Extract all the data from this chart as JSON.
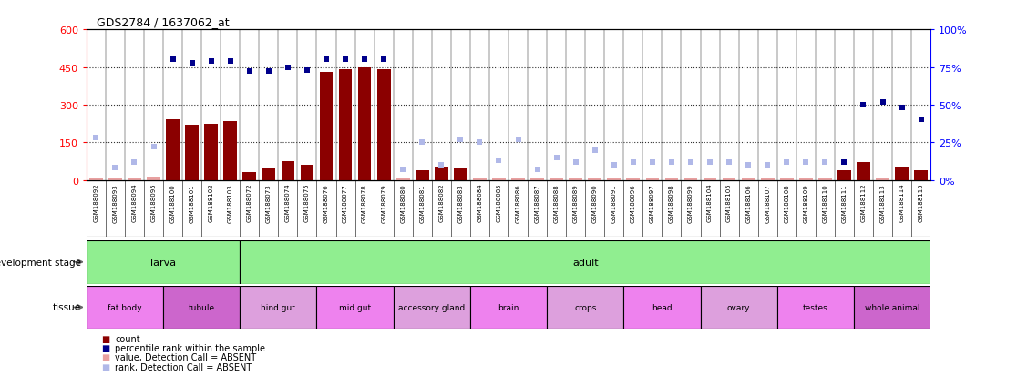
{
  "title": "GDS2784 / 1637062_at",
  "samples": [
    "GSM188092",
    "GSM188093",
    "GSM188094",
    "GSM188095",
    "GSM188100",
    "GSM188101",
    "GSM188102",
    "GSM188103",
    "GSM188072",
    "GSM188073",
    "GSM188074",
    "GSM188075",
    "GSM188076",
    "GSM188077",
    "GSM188078",
    "GSM188079",
    "GSM188080",
    "GSM188081",
    "GSM188082",
    "GSM188083",
    "GSM188084",
    "GSM188085",
    "GSM188086",
    "GSM188087",
    "GSM188088",
    "GSM188089",
    "GSM188090",
    "GSM188091",
    "GSM188096",
    "GSM188097",
    "GSM188098",
    "GSM188099",
    "GSM188104",
    "GSM188105",
    "GSM188106",
    "GSM188107",
    "GSM188108",
    "GSM188109",
    "GSM188110",
    "GSM188111",
    "GSM188112",
    "GSM188113",
    "GSM188114",
    "GSM188115"
  ],
  "count_values": [
    5,
    5,
    5,
    15,
    240,
    220,
    225,
    235,
    30,
    50,
    75,
    60,
    430,
    440,
    450,
    440,
    5,
    40,
    55,
    45,
    5,
    5,
    5,
    5,
    5,
    5,
    5,
    5,
    5,
    5,
    5,
    5,
    5,
    5,
    5,
    5,
    5,
    5,
    5,
    40,
    70,
    5,
    55,
    40
  ],
  "count_absent": [
    true,
    true,
    true,
    true,
    false,
    false,
    false,
    false,
    false,
    false,
    false,
    false,
    false,
    false,
    false,
    false,
    true,
    false,
    false,
    false,
    true,
    true,
    true,
    true,
    true,
    true,
    true,
    true,
    true,
    true,
    true,
    true,
    true,
    true,
    true,
    true,
    true,
    true,
    true,
    false,
    false,
    true,
    false,
    false
  ],
  "rank_values": [
    28,
    8,
    12,
    22,
    80,
    78,
    79,
    79,
    72,
    72,
    75,
    73,
    80,
    80,
    80,
    80,
    7,
    25,
    10,
    27,
    25,
    13,
    27,
    7,
    15,
    12,
    20,
    10,
    12,
    12,
    12,
    12,
    12,
    12,
    10,
    10,
    12,
    12,
    12,
    12,
    50,
    52,
    48,
    40
  ],
  "rank_absent": [
    true,
    true,
    true,
    true,
    false,
    false,
    false,
    false,
    false,
    false,
    false,
    false,
    false,
    false,
    false,
    false,
    true,
    true,
    true,
    true,
    true,
    true,
    true,
    true,
    true,
    true,
    true,
    true,
    true,
    true,
    true,
    true,
    true,
    true,
    true,
    true,
    true,
    true,
    true,
    false,
    false,
    false,
    false,
    false
  ],
  "dev_stage_groups": [
    {
      "label": "larva",
      "start": 0,
      "end": 8,
      "color": "#90ee90"
    },
    {
      "label": "adult",
      "start": 8,
      "end": 44,
      "color": "#90ee90"
    }
  ],
  "tissue_groups": [
    {
      "label": "fat body",
      "start": 0,
      "end": 4,
      "color": "#ee82ee"
    },
    {
      "label": "tubule",
      "start": 4,
      "end": 8,
      "color": "#cc66cc"
    },
    {
      "label": "hind gut",
      "start": 8,
      "end": 12,
      "color": "#dda0dd"
    },
    {
      "label": "mid gut",
      "start": 12,
      "end": 16,
      "color": "#ee82ee"
    },
    {
      "label": "accessory gland",
      "start": 16,
      "end": 20,
      "color": "#dda0dd"
    },
    {
      "label": "brain",
      "start": 20,
      "end": 24,
      "color": "#ee82ee"
    },
    {
      "label": "crops",
      "start": 24,
      "end": 28,
      "color": "#dda0dd"
    },
    {
      "label": "head",
      "start": 28,
      "end": 32,
      "color": "#ee82ee"
    },
    {
      "label": "ovary",
      "start": 32,
      "end": 36,
      "color": "#dda0dd"
    },
    {
      "label": "testes",
      "start": 36,
      "end": 40,
      "color": "#ee82ee"
    },
    {
      "label": "whole animal",
      "start": 40,
      "end": 44,
      "color": "#cc66cc"
    }
  ],
  "left_ylim": [
    0,
    600
  ],
  "left_yticks": [
    0,
    150,
    300,
    450,
    600
  ],
  "right_yticks": [
    0,
    25,
    50,
    75,
    100
  ],
  "bar_color": "#8b0000",
  "bar_absent_color": "#e8a0a0",
  "rank_color": "#00008b",
  "rank_absent_color": "#b0b8e8",
  "hline_color": "#333333",
  "hline_values": [
    150,
    300,
    450
  ],
  "bg_color": "#ffffff",
  "plot_bg_color": "#ffffff",
  "xticklabel_bg": "#cccccc",
  "grid_line_color": "#aaaaaa"
}
